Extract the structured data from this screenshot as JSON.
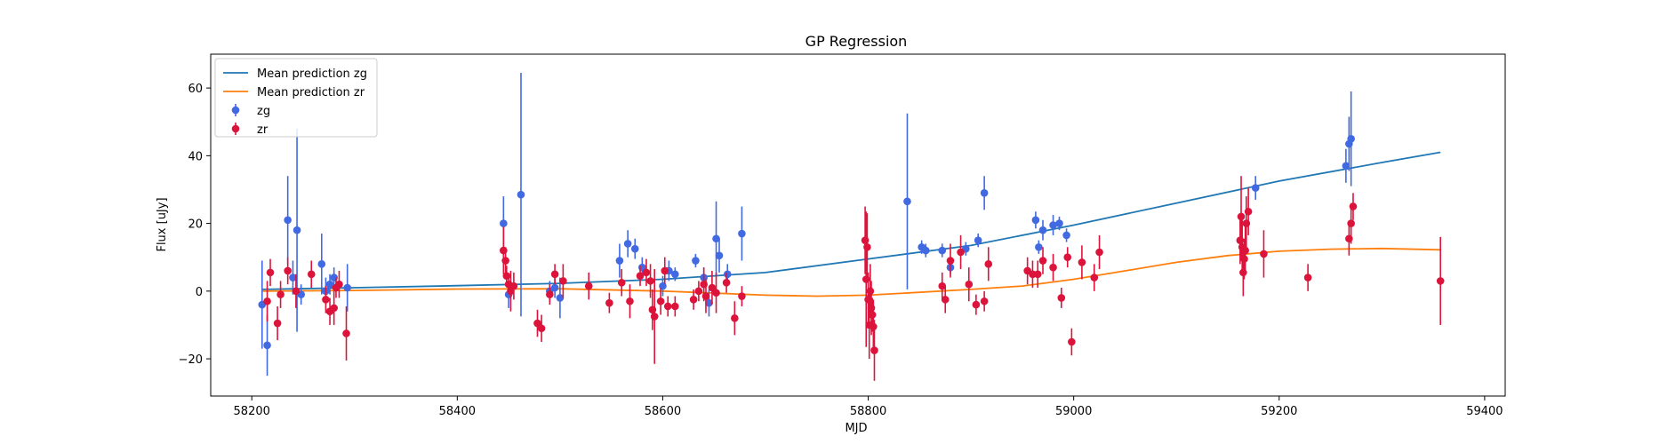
{
  "chart_data": {
    "type": "scatter",
    "title": "GP Regression",
    "xlabel": "MJD",
    "ylabel": "Flux [uJy]",
    "xlim": [
      58160,
      59420
    ],
    "ylim": [
      -31,
      70
    ],
    "xticks": [
      58200,
      58400,
      58600,
      58800,
      59000,
      59200,
      59400
    ],
    "yticks": [
      -20,
      0,
      20,
      40,
      60
    ],
    "legend_position": "top-left",
    "colors": {
      "zg": "#4169e1",
      "zr": "#dc143c",
      "mean_zg": "#1f77b4",
      "mean_zr": "#ff7f0e"
    },
    "series": [
      {
        "name": "Mean prediction zg",
        "kind": "line",
        "x": [
          58210,
          58300,
          58400,
          58500,
          58600,
          58700,
          58800,
          58900,
          59000,
          59100,
          59200,
          59300,
          59357
        ],
        "y": [
          0.5,
          1.0,
          1.6,
          2.3,
          3.5,
          5.5,
          9.5,
          13.5,
          19.5,
          26.0,
          32.5,
          38.0,
          41.0
        ]
      },
      {
        "name": "Mean prediction zr",
        "kind": "line",
        "x": [
          58210,
          58300,
          58400,
          58500,
          58600,
          58700,
          58750,
          58800,
          58900,
          58950,
          59000,
          59050,
          59100,
          59150,
          59200,
          59250,
          59300,
          59357
        ],
        "y": [
          0.0,
          0.2,
          0.6,
          0.7,
          0.0,
          -1.2,
          -1.5,
          -1.2,
          0.5,
          1.5,
          3.5,
          6.0,
          8.5,
          10.5,
          11.8,
          12.4,
          12.6,
          12.2
        ]
      },
      {
        "name": "zg",
        "kind": "errorbar",
        "points": [
          [
            58210,
            -4,
            13
          ],
          [
            58215,
            -16,
            9
          ],
          [
            58235,
            21,
            13
          ],
          [
            58240,
            4,
            5
          ],
          [
            58244,
            18,
            30
          ],
          [
            58248,
            -1,
            3
          ],
          [
            58268,
            8,
            9
          ],
          [
            58272,
            0,
            4
          ],
          [
            58276,
            2,
            3
          ],
          [
            58280,
            4,
            3
          ],
          [
            58293,
            1,
            7
          ],
          [
            58445,
            20,
            8
          ],
          [
            58450,
            -1,
            4
          ],
          [
            58462,
            28.5,
            36
          ],
          [
            58490,
            0,
            3
          ],
          [
            58495,
            1,
            3
          ],
          [
            58500,
            -2,
            6
          ],
          [
            58558,
            9,
            5
          ],
          [
            58566,
            14,
            4
          ],
          [
            58573,
            12.5,
            3
          ],
          [
            58580,
            7,
            3
          ],
          [
            58600,
            1.5,
            3
          ],
          [
            58606,
            6,
            3
          ],
          [
            58612,
            5,
            2
          ],
          [
            58632,
            9,
            2
          ],
          [
            58640,
            4,
            3
          ],
          [
            58645,
            -3.5,
            4
          ],
          [
            58652,
            15.5,
            11
          ],
          [
            58655,
            10.5,
            5
          ],
          [
            58663,
            5,
            3
          ],
          [
            58677,
            17,
            8
          ],
          [
            58838,
            26.5,
            26
          ],
          [
            58852,
            13,
            2
          ],
          [
            58856,
            12,
            2
          ],
          [
            58872,
            12,
            2
          ],
          [
            58880,
            7,
            2
          ],
          [
            58895,
            12.5,
            2
          ],
          [
            58907,
            15,
            2
          ],
          [
            58913,
            29,
            5
          ],
          [
            58963,
            21,
            2.5
          ],
          [
            58966,
            13,
            2
          ],
          [
            58970,
            18,
            3
          ],
          [
            58980,
            19.5,
            3
          ],
          [
            58986,
            20,
            2
          ],
          [
            58993,
            16.5,
            2
          ],
          [
            59177,
            30.5,
            3.5
          ],
          [
            59265,
            37,
            5
          ],
          [
            59268,
            43.5,
            8
          ],
          [
            59270,
            45,
            14
          ]
        ]
      },
      {
        "name": "zr",
        "kind": "errorbar",
        "points": [
          [
            58215,
            -3,
            6
          ],
          [
            58218,
            5.5,
            4
          ],
          [
            58225,
            -9.5,
            5
          ],
          [
            58228,
            -1,
            4
          ],
          [
            58235,
            6,
            4
          ],
          [
            58243,
            0,
            5
          ],
          [
            58258,
            5,
            4
          ],
          [
            58272,
            -2.5,
            4
          ],
          [
            58276,
            -6,
            4
          ],
          [
            58280,
            -5,
            5
          ],
          [
            58282,
            1,
            3
          ],
          [
            58285,
            2,
            4
          ],
          [
            58292,
            -12.5,
            8
          ],
          [
            58445,
            12,
            7
          ],
          [
            58447,
            9,
            4
          ],
          [
            58448,
            4.5,
            3
          ],
          [
            58450,
            2,
            3
          ],
          [
            58452,
            0,
            6
          ],
          [
            58455,
            1.5,
            4
          ],
          [
            58478,
            -9.5,
            4
          ],
          [
            58482,
            -11,
            4
          ],
          [
            58490,
            -1,
            3
          ],
          [
            58495,
            5,
            3
          ],
          [
            58503,
            3,
            5
          ],
          [
            58528,
            1.5,
            4
          ],
          [
            58548,
            -3.5,
            3
          ],
          [
            58560,
            2.5,
            4
          ],
          [
            58568,
            -3,
            5
          ],
          [
            58578,
            4.5,
            3
          ],
          [
            58584,
            5.5,
            4
          ],
          [
            58588,
            3,
            5
          ],
          [
            58590,
            -5.5,
            6
          ],
          [
            58592,
            -7.5,
            14
          ],
          [
            58598,
            -3,
            4
          ],
          [
            58602,
            6,
            4
          ],
          [
            58605,
            -4.5,
            3
          ],
          [
            58612,
            -4.5,
            3
          ],
          [
            58630,
            -2.5,
            3
          ],
          [
            58635,
            0,
            3
          ],
          [
            58640,
            2,
            5
          ],
          [
            58642,
            -1.5,
            5
          ],
          [
            58648,
            1,
            5
          ],
          [
            58652,
            -0.5,
            6
          ],
          [
            58662,
            2.5,
            3
          ],
          [
            58670,
            -8,
            5
          ],
          [
            58677,
            -1.5,
            3
          ],
          [
            58797,
            15,
            10
          ],
          [
            58798,
            3.5,
            20
          ],
          [
            58799,
            13,
            10
          ],
          [
            58800,
            -2.5,
            8
          ],
          [
            58801,
            -10,
            10
          ],
          [
            58802,
            0,
            8
          ],
          [
            58803,
            -5,
            8
          ],
          [
            58804,
            -7,
            5
          ],
          [
            58805,
            -10.5,
            8
          ],
          [
            58806,
            -17.5,
            9
          ],
          [
            58872,
            1.5,
            4
          ],
          [
            58875,
            -2.5,
            4
          ],
          [
            58880,
            9,
            5
          ],
          [
            58890,
            11.5,
            5
          ],
          [
            58898,
            2,
            5
          ],
          [
            58905,
            -4,
            3
          ],
          [
            58913,
            -3,
            3
          ],
          [
            58917,
            8,
            5
          ],
          [
            58955,
            6,
            4
          ],
          [
            58960,
            5,
            4
          ],
          [
            58965,
            5,
            4
          ],
          [
            58970,
            9,
            4
          ],
          [
            58980,
            7,
            4
          ],
          [
            58988,
            -2,
            3
          ],
          [
            58994,
            10,
            3
          ],
          [
            58998,
            -15,
            4
          ],
          [
            59008,
            8.5,
            5
          ],
          [
            59020,
            4,
            4
          ],
          [
            59025,
            11.5,
            5
          ],
          [
            59162,
            15,
            7
          ],
          [
            59163,
            22,
            12
          ],
          [
            59164,
            13,
            8
          ],
          [
            59165,
            5.5,
            7
          ],
          [
            59166,
            9.5,
            6
          ],
          [
            59167,
            12,
            7
          ],
          [
            59168,
            20,
            8
          ],
          [
            59170,
            23.5,
            7
          ],
          [
            59185,
            11,
            7
          ],
          [
            59228,
            4,
            4
          ],
          [
            59268,
            15.5,
            5
          ],
          [
            59270,
            20,
            6
          ],
          [
            59272,
            25,
            4
          ],
          [
            59357,
            3,
            13
          ]
        ]
      }
    ]
  }
}
